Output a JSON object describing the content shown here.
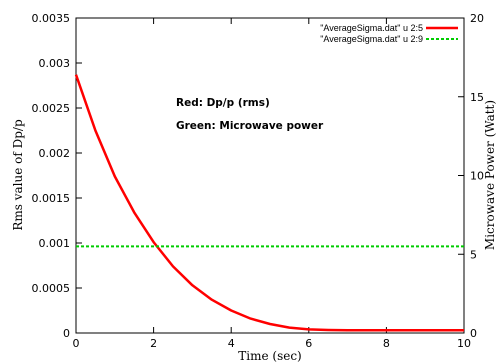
{
  "chart_data": {
    "type": "line",
    "x_label": "Time (sec)",
    "y_label": "Rms value of Dp/p",
    "y2_label": "Microwave Power (Watt)",
    "x_range": [
      0,
      10
    ],
    "y_range": [
      0,
      0.0035
    ],
    "y2_range": [
      0,
      20
    ],
    "x_ticks": [
      "0",
      "2",
      "4",
      "6",
      "8",
      "10"
    ],
    "y_ticks": [
      "0",
      "0.0005",
      "0.001",
      "0.0015",
      "0.002",
      "0.0025",
      "0.003",
      "0.0035"
    ],
    "y2_ticks": [
      "0",
      "5",
      "10",
      "15",
      "20"
    ],
    "grid": false,
    "legend_position": "top-right",
    "annotations": [
      "Red: Dp/p (rms)",
      "Green: Microwave power"
    ],
    "series": [
      {
        "name": "\"AverageSigma.dat\" u 2:5",
        "color": "#ff0000",
        "axis": "left",
        "style": "solid",
        "x": [
          0,
          0.5,
          1,
          1.5,
          2,
          2.5,
          3,
          3.5,
          4,
          4.5,
          5,
          5.5,
          6,
          6.5,
          7,
          7.5,
          8,
          8.5,
          9,
          9.5,
          10
        ],
        "y": [
          0.00287,
          0.00225,
          0.00174,
          0.00134,
          0.00101,
          0.00074,
          0.00053,
          0.00037,
          0.00025,
          0.00016,
          0.0001,
          6e-05,
          4e-05,
          3.3e-05,
          3e-05,
          3e-05,
          3e-05,
          3e-05,
          3e-05,
          3e-05,
          3e-05
        ]
      },
      {
        "name": "\"AverageSigma.dat\" u 2:9",
        "color": "#00cc00",
        "axis": "right",
        "style": "dashed",
        "x": [
          0,
          10
        ],
        "y": [
          5.5,
          5.5
        ]
      }
    ]
  }
}
